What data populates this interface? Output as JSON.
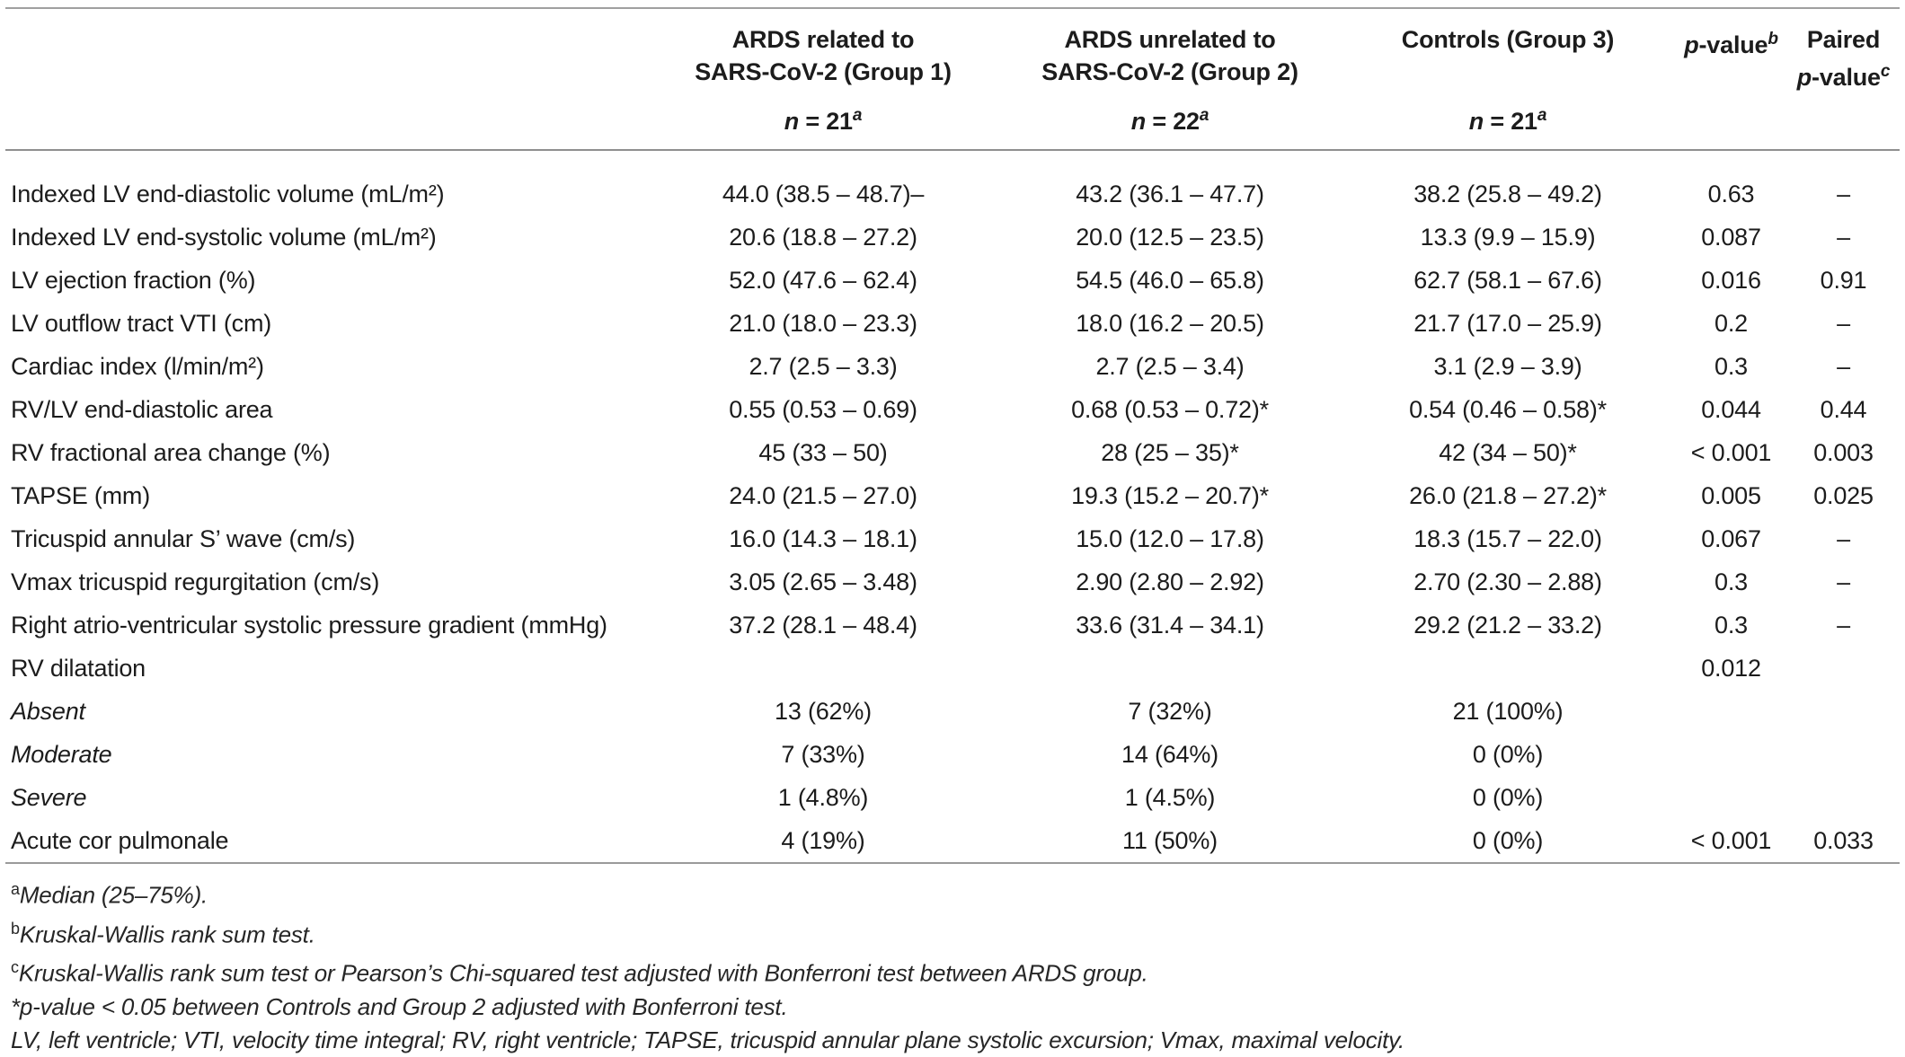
{
  "table": {
    "header": {
      "group1": {
        "line1": "ARDS related to",
        "line2": "SARS-CoV-2 (Group 1)",
        "n_italic": "n",
        "n_rest": " = 21",
        "n_sup": "a"
      },
      "group2": {
        "line1": "ARDS unrelated to",
        "line2": "SARS-CoV-2 (Group 2)",
        "n_italic": "n",
        "n_rest": " = 22",
        "n_sup": "a"
      },
      "controls": {
        "line1": "Controls (Group 3)",
        "n_italic": "n",
        "n_rest": " = 21",
        "n_sup": "a"
      },
      "pvalue": {
        "p_italic": "p",
        "rest": "-value",
        "sup": "b"
      },
      "paired": {
        "line1": "Paired",
        "p_italic": "p",
        "rest": "-value",
        "sup": "c"
      }
    },
    "rows": [
      {
        "label": "Indexed LV end-diastolic volume (mL/m²)",
        "group1": "44.0 (38.5 – 48.7)–",
        "group2": "43.2 (36.1 – 47.7)",
        "controls": "38.2 (25.8 – 49.2)",
        "p": "0.63",
        "paired": "–",
        "italic": false
      },
      {
        "label": "Indexed LV end-systolic volume (mL/m²)",
        "group1": "20.6 (18.8 – 27.2)",
        "group2": "20.0 (12.5 – 23.5)",
        "controls": "13.3 (9.9 – 15.9)",
        "p": "0.087",
        "paired": "–",
        "italic": false
      },
      {
        "label": "LV ejection fraction (%)",
        "group1": "52.0 (47.6 – 62.4)",
        "group2": "54.5 (46.0 – 65.8)",
        "controls": "62.7 (58.1 – 67.6)",
        "p": "0.016",
        "paired": "0.91",
        "italic": false
      },
      {
        "label": "LV outflow tract VTI (cm)",
        "group1": "21.0 (18.0 – 23.3)",
        "group2": "18.0 (16.2 – 20.5)",
        "controls": "21.7 (17.0 – 25.9)",
        "p": "0.2",
        "paired": "–",
        "italic": false
      },
      {
        "label": "Cardiac index (l/min/m²)",
        "group1": "2.7 (2.5 – 3.3)",
        "group2": "2.7 (2.5 – 3.4)",
        "controls": "3.1 (2.9 – 3.9)",
        "p": "0.3",
        "paired": "–",
        "italic": false
      },
      {
        "label": "RV/LV end-diastolic area",
        "group1": "0.55 (0.53 – 0.69)",
        "group2": "0.68 (0.53 – 0.72)*",
        "controls": "0.54 (0.46 – 0.58)*",
        "p": "0.044",
        "paired": "0.44",
        "italic": false
      },
      {
        "label": "RV fractional area change (%)",
        "group1": "45 (33 – 50)",
        "group2": "28 (25 – 35)*",
        "controls": "42 (34 – 50)*",
        "p": "< 0.001",
        "paired": "0.003",
        "italic": false
      },
      {
        "label": "TAPSE (mm)",
        "group1": "24.0 (21.5 – 27.0)",
        "group2": "19.3 (15.2 – 20.7)*",
        "controls": "26.0 (21.8 – 27.2)*",
        "p": "0.005",
        "paired": "0.025",
        "italic": false
      },
      {
        "label": "Tricuspid annular S’ wave (cm/s)",
        "group1": "16.0 (14.3 – 18.1)",
        "group2": "15.0 (12.0 – 17.8)",
        "controls": "18.3 (15.7 – 22.0)",
        "p": "0.067",
        "paired": "–",
        "italic": false
      },
      {
        "label": "Vmax tricuspid regurgitation (cm/s)",
        "group1": "3.05 (2.65 – 3.48)",
        "group2": "2.90 (2.80 – 2.92)",
        "controls": "2.70 (2.30 – 2.88)",
        "p": "0.3",
        "paired": "–",
        "italic": false
      },
      {
        "label": "Right atrio-ventricular systolic pressure gradient (mmHg)",
        "group1": "37.2 (28.1 – 48.4)",
        "group2": "33.6 (31.4 – 34.1)",
        "controls": "29.2 (21.2 – 33.2)",
        "p": "0.3",
        "paired": "–",
        "italic": false
      },
      {
        "label": "RV dilatation",
        "group1": "",
        "group2": "",
        "controls": "",
        "p": "0.012",
        "paired": "",
        "italic": false
      },
      {
        "label": "Absent",
        "group1": "13 (62%)",
        "group2": "7 (32%)",
        "controls": "21 (100%)",
        "p": "",
        "paired": "",
        "italic": true
      },
      {
        "label": "Moderate",
        "group1": "7 (33%)",
        "group2": "14 (64%)",
        "controls": "0 (0%)",
        "p": "",
        "paired": "",
        "italic": true
      },
      {
        "label": "Severe",
        "group1": "1 (4.8%)",
        "group2": "1 (4.5%)",
        "controls": "0 (0%)",
        "p": "",
        "paired": "",
        "italic": true
      },
      {
        "label": "Acute cor pulmonale",
        "group1": "4 (19%)",
        "group2": "11 (50%)",
        "controls": "0 (0%)",
        "p": "< 0.001",
        "paired": "0.033",
        "italic": false
      }
    ]
  },
  "footnotes": [
    {
      "sup": "a",
      "text": "Median (25–75%)."
    },
    {
      "sup": "b",
      "text": "Kruskal-Wallis rank sum test."
    },
    {
      "sup": "c",
      "text": "Kruskal-Wallis rank sum test or Pearson’s Chi-squared test adjusted with Bonferroni test between ARDS group."
    },
    {
      "sup": "",
      "text": "*p-value < 0.05 between Controls and Group 2 adjusted with Bonferroni test."
    },
    {
      "sup": "",
      "text": "LV, left ventricle; VTI, velocity time integral; RV, right ventricle; TAPSE, tricuspid annular plane systolic excursion; Vmax, maximal velocity."
    }
  ],
  "colors": {
    "text": "#1c1c1c",
    "rule": "#9a9a9a",
    "background": "#ffffff"
  }
}
